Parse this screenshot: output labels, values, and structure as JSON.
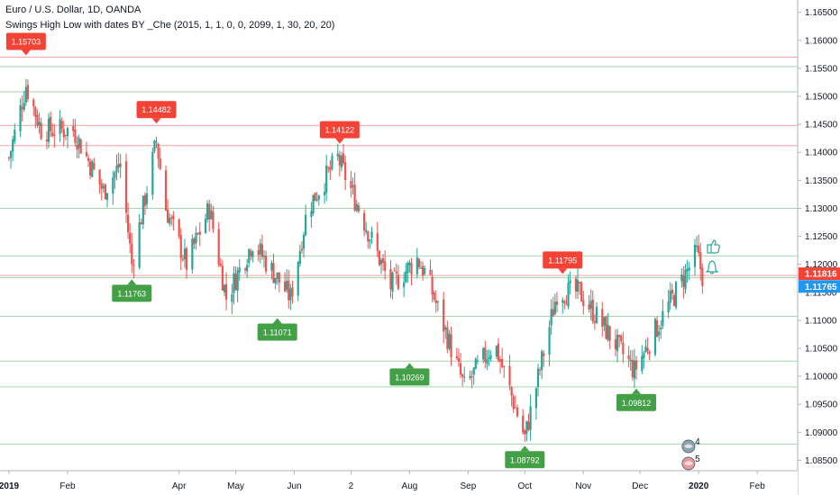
{
  "legend": {
    "title": "Euro / U.S. Dollar, 1D, OANDA",
    "indicator": "Swings High Low with dates BY _Che (2015, 1, 1, 0, 0, 2099, 1, 30, 20, 20)"
  },
  "colors": {
    "up": "#26a69a",
    "down": "#ef5350",
    "high_label": "#f44336",
    "low_label": "#43a047",
    "red_line": "#f4a6a6",
    "green_line": "#a5d6a7",
    "axis_text": "#131722",
    "last_price_tag": "#f44336",
    "current_price_tag": "#2196f3"
  },
  "icons": [
    "thumbs-up-icon",
    "bell-icon",
    "dividend-event-icon",
    "split-event-icon"
  ],
  "events": [
    {
      "name": "dividend-event-icon",
      "label": "4",
      "x": "2019-12-29"
    },
    {
      "name": "split-event-icon",
      "label": "5",
      "x": "2019-12-29"
    }
  ],
  "chart_data": {
    "type": "candlestick",
    "x_axis": {
      "start": "2019-01-01",
      "end": "2020-02-20",
      "ticks": [
        {
          "label": "2019",
          "x": "2019-01-01",
          "bold": true
        },
        {
          "label": "Feb",
          "x": "2019-02-01"
        },
        {
          "label": "Apr",
          "x": "2019-04-01"
        },
        {
          "label": "May",
          "x": "2019-05-01"
        },
        {
          "label": "Jun",
          "x": "2019-06-01"
        },
        {
          "label": "2",
          "x": "2019-07-01"
        },
        {
          "label": "Aug",
          "x": "2019-08-01"
        },
        {
          "label": "Sep",
          "x": "2019-09-01"
        },
        {
          "label": "Oct",
          "x": "2019-10-01"
        },
        {
          "label": "Nov",
          "x": "2019-11-01"
        },
        {
          "label": "Dec",
          "x": "2019-12-01"
        },
        {
          "label": "2020",
          "x": "2020-01-01",
          "bold": true
        },
        {
          "label": "Feb",
          "x": "2020-02-01"
        }
      ]
    },
    "y_axis": {
      "min": 1.0833,
      "max": 1.1672,
      "ticks": [
        "1.16500",
        "1.16000",
        "1.15500",
        "1.15000",
        "1.14500",
        "1.14000",
        "1.13500",
        "1.13000",
        "1.12500",
        "1.12000",
        "1.11500",
        "1.11000",
        "1.10500",
        "1.10000",
        "1.09500",
        "1.09000",
        "1.08500"
      ]
    },
    "key_points": [
      {
        "x": "2019-01-01",
        "y": 1.139
      },
      {
        "x": "2019-01-10",
        "y": 1.152
      },
      {
        "x": "2019-01-18",
        "y": 1.144
      },
      {
        "x": "2019-02-04",
        "y": 1.144
      },
      {
        "x": "2019-02-20",
        "y": 1.133
      },
      {
        "x": "2019-03-01",
        "y": 1.138
      },
      {
        "x": "2019-03-07",
        "y": 1.12
      },
      {
        "x": "2019-03-20",
        "y": 1.142
      },
      {
        "x": "2019-03-25",
        "y": 1.13
      },
      {
        "x": "2019-04-05",
        "y": 1.12
      },
      {
        "x": "2019-04-17",
        "y": 1.13
      },
      {
        "x": "2019-04-26",
        "y": 1.114
      },
      {
        "x": "2019-05-10",
        "y": 1.124
      },
      {
        "x": "2019-05-30",
        "y": 1.114
      },
      {
        "x": "2019-06-08",
        "y": 1.13
      },
      {
        "x": "2019-06-24",
        "y": 1.139
      },
      {
        "x": "2019-07-10",
        "y": 1.126
      },
      {
        "x": "2019-07-22",
        "y": 1.116
      },
      {
        "x": "2019-08-05",
        "y": 1.121
      },
      {
        "x": "2019-08-10",
        "y": 1.118
      },
      {
        "x": "2019-08-30",
        "y": 1.098
      },
      {
        "x": "2019-09-15",
        "y": 1.106
      },
      {
        "x": "2019-10-01",
        "y": 1.089
      },
      {
        "x": "2019-10-18",
        "y": 1.115
      },
      {
        "x": "2019-10-30",
        "y": 1.115
      },
      {
        "x": "2019-11-28",
        "y": 1.101
      },
      {
        "x": "2019-12-15",
        "y": 1.112
      },
      {
        "x": "2019-12-31",
        "y": 1.122
      },
      {
        "x": "2020-01-03",
        "y": 1.118
      }
    ],
    "swing_highs": [
      {
        "x": "2019-01-10",
        "value": 1.157,
        "label": "1.15703"
      },
      {
        "x": "2019-03-20",
        "value": 1.14482,
        "label": "1.14482"
      },
      {
        "x": "2019-06-25",
        "value": 1.14122,
        "label": "1.14122"
      },
      {
        "x": "2019-10-21",
        "value": 1.11795,
        "label": "1.11795"
      }
    ],
    "swing_lows": [
      {
        "x": "2019-03-07",
        "value": 1.11763,
        "label": "1.11763"
      },
      {
        "x": "2019-05-23",
        "value": 1.11071,
        "label": "1.11071"
      },
      {
        "x": "2019-08-01",
        "value": 1.10269,
        "label": "1.10269"
      },
      {
        "x": "2019-10-01",
        "value": 1.08792,
        "label": "1.08792"
      },
      {
        "x": "2019-11-29",
        "value": 1.09812,
        "label": "1.09812"
      }
    ],
    "horizontal_levels": [
      {
        "y": 1.157,
        "color": "red"
      },
      {
        "y": 1.1553,
        "color": "green"
      },
      {
        "y": 1.1508,
        "color": "green"
      },
      {
        "y": 1.1448,
        "color": "red"
      },
      {
        "y": 1.1412,
        "color": "red"
      },
      {
        "y": 1.13,
        "color": "green"
      },
      {
        "y": 1.1215,
        "color": "green"
      },
      {
        "y": 1.118,
        "color": "red"
      },
      {
        "y": 1.1176,
        "color": "green"
      },
      {
        "y": 1.1107,
        "color": "green"
      },
      {
        "y": 1.1027,
        "color": "green"
      },
      {
        "y": 1.0981,
        "color": "green"
      },
      {
        "y": 1.0879,
        "color": "green"
      }
    ],
    "price_tags": [
      {
        "label": "1.11816",
        "value": 1.11816,
        "color": "last_price_tag"
      },
      {
        "label": "1.11765",
        "value": 1.11765,
        "color": "current_price_tag"
      }
    ]
  }
}
